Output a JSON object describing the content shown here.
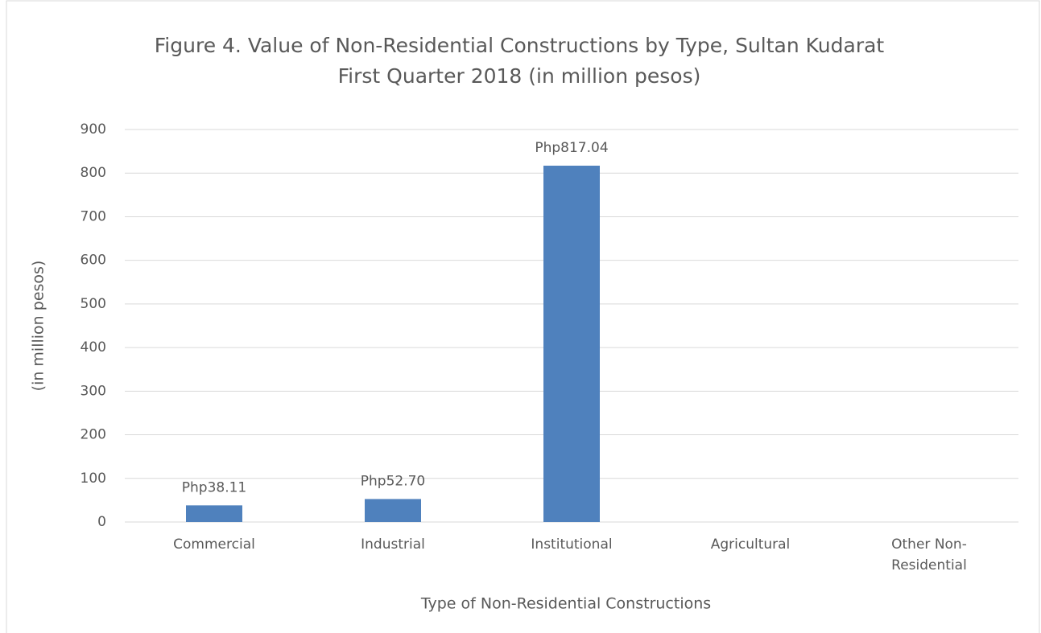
{
  "chart_data": {
    "type": "bar",
    "title": [
      "Figure 4. Value of Non-Residential Constructions by Type, Sultan Kudarat",
      "First Quarter 2018 (in million pesos)"
    ],
    "x_label": "Type of Non-Residential Constructions",
    "y_label": "(in million pesos)",
    "categories": [
      "Commercial",
      "Industrial",
      "Institutional",
      "Agricultural",
      "Other  Non-Residential"
    ],
    "values": [
      38.11,
      52.7,
      817.04,
      0,
      0
    ],
    "value_labels": [
      "Php38.11",
      "Php52.70",
      "Php817.04",
      null,
      null
    ],
    "color": "#4f81bd",
    "ylim": [
      0,
      900
    ],
    "yticks": [
      0,
      100,
      200,
      300,
      400,
      500,
      600,
      700,
      800,
      900
    ],
    "grid": true
  }
}
